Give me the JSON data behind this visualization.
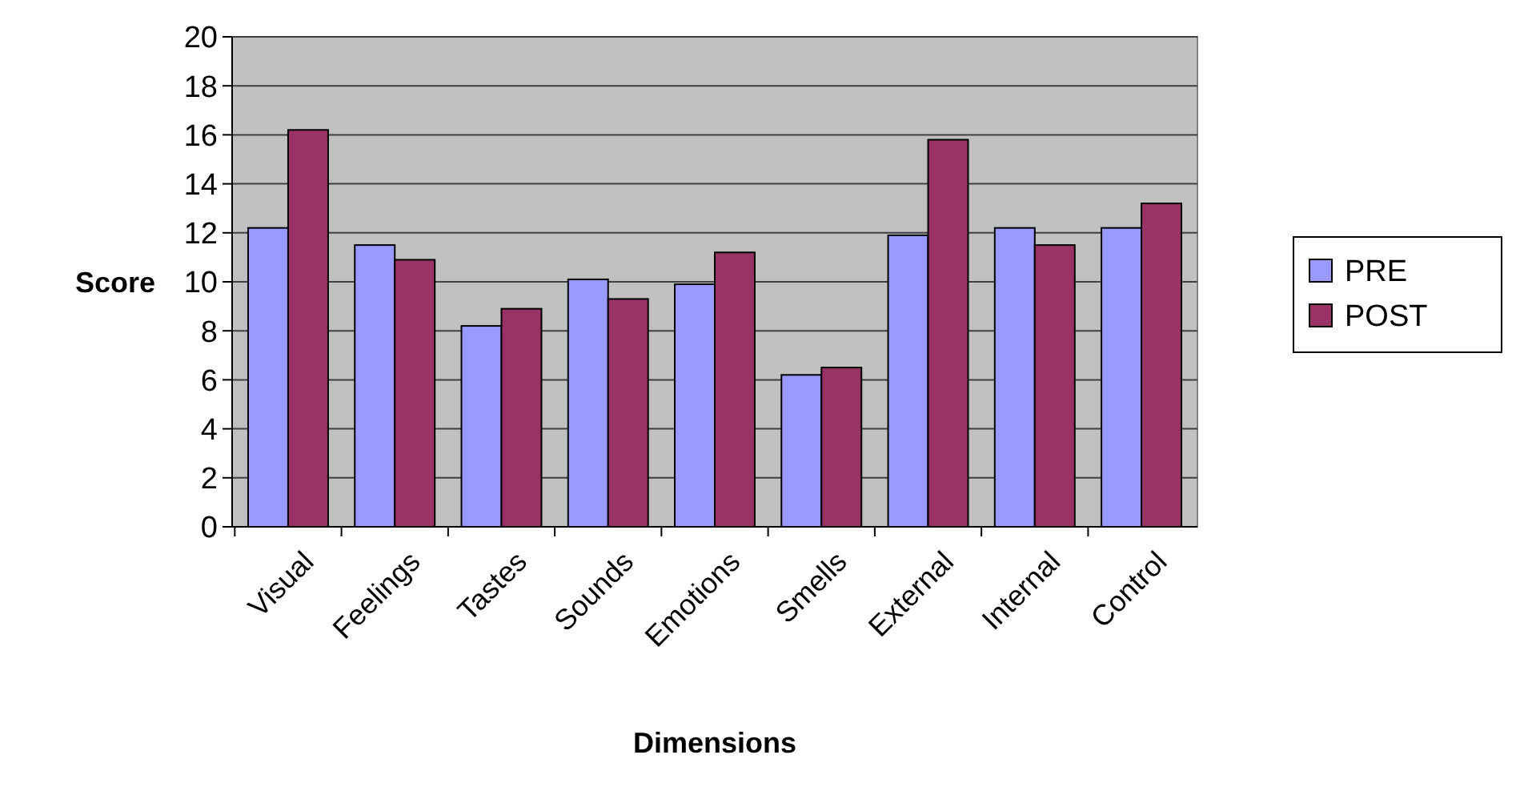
{
  "chart_data": {
    "type": "bar",
    "xlabel": "Dimensions",
    "ylabel": "Score",
    "categories": [
      "Visual",
      "Feelings",
      "Tastes",
      "Sounds",
      "Emotions",
      "Smells",
      "External",
      "Internal",
      "Control"
    ],
    "series": [
      {
        "name": "PRE",
        "color": "#9999ff",
        "values": [
          12.2,
          11.5,
          8.2,
          10.1,
          9.9,
          6.2,
          11.9,
          12.2,
          12.2
        ]
      },
      {
        "name": "POST",
        "color": "#993366",
        "values": [
          16.2,
          10.9,
          8.9,
          9.3,
          11.2,
          6.5,
          15.8,
          11.5,
          13.2
        ]
      }
    ],
    "ylim": [
      0,
      20
    ],
    "yticks": [
      0,
      2,
      4,
      6,
      8,
      10,
      12,
      14,
      16,
      18,
      20
    ],
    "grid": "y",
    "legend": "right"
  }
}
